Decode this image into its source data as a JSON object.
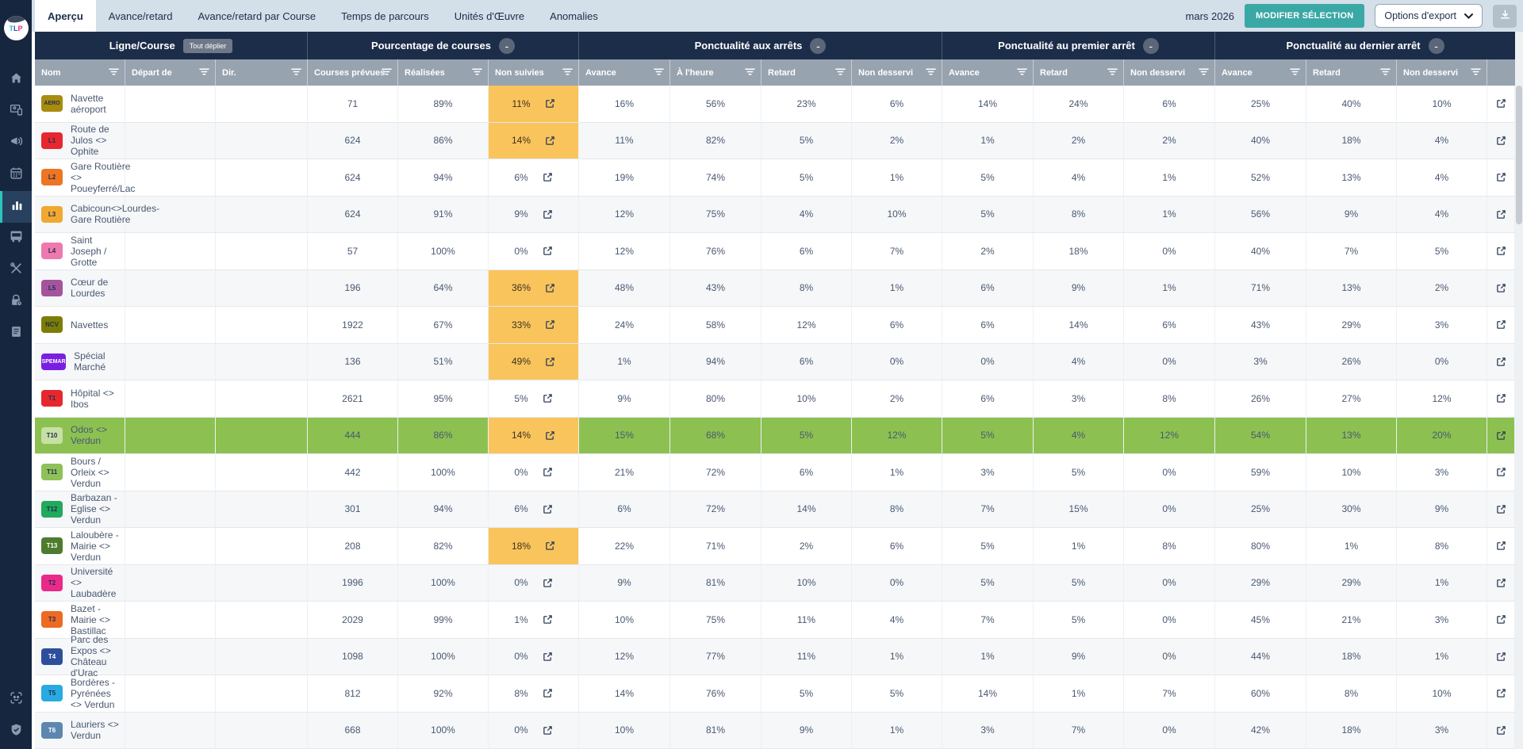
{
  "topbar": {
    "tabs": [
      "Aperçu",
      "Avance/retard",
      "Avance/retard par Course",
      "Temps de parcours",
      "Unités d'Œuvre",
      "Anomalies"
    ],
    "period": "mars 2026",
    "modify_button": "MODIFIER SÉLECTION",
    "export_select": "Options d'export"
  },
  "colors": {
    "accent_teal": "#3aa8a4",
    "header_navy": "#1b2d49",
    "subheader_gray": "#98a3b0",
    "warning_orange": "#f9c45c",
    "highlight_green": "#8cc152"
  },
  "table": {
    "groups": [
      {
        "label": "Ligne/Course",
        "expand_button": "Tout déplier"
      },
      {
        "label": "Pourcentage de courses",
        "collapse_label": "-"
      },
      {
        "label": "Ponctualité aux arrêts",
        "collapse_label": "-"
      },
      {
        "label": "Ponctualité au premier arrêt",
        "collapse_label": "-"
      },
      {
        "label": "Ponctualité au dernier arrêt",
        "collapse_label": "-"
      }
    ],
    "columns": [
      "Nom",
      "Départ de",
      "Dir.",
      "Courses prévues",
      "Réalisées",
      "Non suivies",
      "Avance",
      "À l'heure",
      "Retard",
      "Non desservi",
      "Avance",
      "Retard",
      "Non desservi",
      "Avance",
      "Retard",
      "Non desservi"
    ],
    "rows": [
      {
        "badge": "AERO",
        "badge_bg": "#a98c0f",
        "badge_fg": "#1e2f4d",
        "name": "Navette aéroport",
        "prevues": "71",
        "realisees": "89%",
        "non_suivies": "11%",
        "ns_highlight": true,
        "row_highlight": false,
        "arrets": [
          "16%",
          "56%",
          "23%",
          "6%"
        ],
        "premier": [
          "14%",
          "24%",
          "6%"
        ],
        "dernier": [
          "25%",
          "40%",
          "10%"
        ]
      },
      {
        "badge": "L1",
        "badge_bg": "#e6282e",
        "badge_fg": "#1e2f4d",
        "name": "Route de Julos <> Ophite",
        "prevues": "624",
        "realisees": "86%",
        "non_suivies": "14%",
        "ns_highlight": true,
        "row_highlight": false,
        "arrets": [
          "11%",
          "82%",
          "5%",
          "2%"
        ],
        "premier": [
          "1%",
          "2%",
          "2%"
        ],
        "dernier": [
          "40%",
          "18%",
          "4%"
        ]
      },
      {
        "badge": "L2",
        "badge_bg": "#ee7522",
        "badge_fg": "#1e2f4d",
        "name": "Gare Routière <> Poueyferré/Lac",
        "prevues": "624",
        "realisees": "94%",
        "non_suivies": "6%",
        "ns_highlight": false,
        "row_highlight": false,
        "arrets": [
          "19%",
          "74%",
          "5%",
          "1%"
        ],
        "premier": [
          "5%",
          "4%",
          "1%"
        ],
        "dernier": [
          "52%",
          "13%",
          "4%"
        ]
      },
      {
        "badge": "L3",
        "badge_bg": "#f1a832",
        "badge_fg": "#1e2f4d",
        "name": "Cabicoun<>Lourdes-Gare Routière",
        "prevues": "624",
        "realisees": "91%",
        "non_suivies": "9%",
        "ns_highlight": false,
        "row_highlight": false,
        "arrets": [
          "12%",
          "75%",
          "4%",
          "10%"
        ],
        "premier": [
          "5%",
          "8%",
          "1%"
        ],
        "dernier": [
          "56%",
          "9%",
          "4%"
        ]
      },
      {
        "badge": "L4",
        "badge_bg": "#ee79ae",
        "badge_fg": "#1e2f4d",
        "name": "Saint Joseph / Grotte",
        "prevues": "57",
        "realisees": "100%",
        "non_suivies": "0%",
        "ns_highlight": false,
        "row_highlight": false,
        "arrets": [
          "12%",
          "76%",
          "6%",
          "7%"
        ],
        "premier": [
          "2%",
          "18%",
          "0%"
        ],
        "dernier": [
          "40%",
          "7%",
          "5%"
        ]
      },
      {
        "badge": "L5",
        "badge_bg": "#a4549d",
        "badge_fg": "#1e2f4d",
        "name": "Cœur de Lourdes",
        "prevues": "196",
        "realisees": "64%",
        "non_suivies": "36%",
        "ns_highlight": true,
        "row_highlight": false,
        "arrets": [
          "48%",
          "43%",
          "8%",
          "1%"
        ],
        "premier": [
          "6%",
          "9%",
          "1%"
        ],
        "dernier": [
          "71%",
          "13%",
          "2%"
        ]
      },
      {
        "badge": "NCV",
        "badge_bg": "#7c7d05",
        "badge_fg": "#1e2f4d",
        "name": "Navettes",
        "prevues": "1922",
        "realisees": "67%",
        "non_suivies": "33%",
        "ns_highlight": true,
        "row_highlight": false,
        "arrets": [
          "24%",
          "58%",
          "12%",
          "6%"
        ],
        "premier": [
          "6%",
          "14%",
          "6%"
        ],
        "dernier": [
          "43%",
          "29%",
          "3%"
        ]
      },
      {
        "badge": "SPEMAR",
        "badge_bg": "#7a1fe0",
        "badge_fg": "#ffffff",
        "name": "Spécial Marché",
        "prevues": "136",
        "realisees": "51%",
        "non_suivies": "49%",
        "ns_highlight": true,
        "row_highlight": false,
        "arrets": [
          "1%",
          "94%",
          "6%",
          "0%"
        ],
        "premier": [
          "0%",
          "4%",
          "0%"
        ],
        "dernier": [
          "3%",
          "26%",
          "0%"
        ]
      },
      {
        "badge": "T1",
        "badge_bg": "#e6282e",
        "badge_fg": "#1e2f4d",
        "name": "Hôpital <> Ibos",
        "prevues": "2621",
        "realisees": "95%",
        "non_suivies": "5%",
        "ns_highlight": false,
        "row_highlight": false,
        "arrets": [
          "9%",
          "80%",
          "10%",
          "2%"
        ],
        "premier": [
          "6%",
          "3%",
          "8%"
        ],
        "dernier": [
          "26%",
          "27%",
          "12%"
        ]
      },
      {
        "badge": "T10",
        "badge_bg": "#c6e0a5",
        "badge_fg": "#1e2f4d",
        "name": "Odos <> Verdun",
        "prevues": "444",
        "realisees": "86%",
        "non_suivies": "14%",
        "ns_highlight": true,
        "row_highlight": true,
        "arrets": [
          "15%",
          "68%",
          "5%",
          "12%"
        ],
        "premier": [
          "5%",
          "4%",
          "12%"
        ],
        "dernier": [
          "54%",
          "13%",
          "20%"
        ]
      },
      {
        "badge": "T11",
        "badge_bg": "#8ec158",
        "badge_fg": "#1e2f4d",
        "name": "Bours / Orleix <> Verdun",
        "prevues": "442",
        "realisees": "100%",
        "non_suivies": "0%",
        "ns_highlight": false,
        "row_highlight": false,
        "arrets": [
          "21%",
          "72%",
          "6%",
          "1%"
        ],
        "premier": [
          "3%",
          "5%",
          "0%"
        ],
        "dernier": [
          "59%",
          "10%",
          "3%"
        ]
      },
      {
        "badge": "T12",
        "badge_bg": "#21a95c",
        "badge_fg": "#1e2f4d",
        "name": "Barbazan - Eglise <> Verdun",
        "prevues": "301",
        "realisees": "94%",
        "non_suivies": "6%",
        "ns_highlight": false,
        "row_highlight": false,
        "arrets": [
          "6%",
          "72%",
          "14%",
          "8%"
        ],
        "premier": [
          "7%",
          "15%",
          "0%"
        ],
        "dernier": [
          "25%",
          "30%",
          "9%"
        ]
      },
      {
        "badge": "T13",
        "badge_bg": "#4d7c2d",
        "badge_fg": "#ffffff",
        "name": "Laloubère - Mairie <> Verdun",
        "prevues": "208",
        "realisees": "82%",
        "non_suivies": "18%",
        "ns_highlight": true,
        "row_highlight": false,
        "arrets": [
          "22%",
          "71%",
          "2%",
          "6%"
        ],
        "premier": [
          "5%",
          "1%",
          "8%"
        ],
        "dernier": [
          "80%",
          "1%",
          "8%"
        ]
      },
      {
        "badge": "T2",
        "badge_bg": "#e92a8a",
        "badge_fg": "#1e2f4d",
        "name": "Université <> Laubadère",
        "prevues": "1996",
        "realisees": "100%",
        "non_suivies": "0%",
        "ns_highlight": false,
        "row_highlight": false,
        "arrets": [
          "9%",
          "81%",
          "10%",
          "0%"
        ],
        "premier": [
          "5%",
          "5%",
          "0%"
        ],
        "dernier": [
          "29%",
          "29%",
          "1%"
        ]
      },
      {
        "badge": "T3",
        "badge_bg": "#ed6a23",
        "badge_fg": "#1e2f4d",
        "name": "Bazet - Mairie <> Bastillac",
        "prevues": "2029",
        "realisees": "99%",
        "non_suivies": "1%",
        "ns_highlight": false,
        "row_highlight": false,
        "arrets": [
          "10%",
          "75%",
          "11%",
          "4%"
        ],
        "premier": [
          "7%",
          "5%",
          "0%"
        ],
        "dernier": [
          "45%",
          "21%",
          "3%"
        ]
      },
      {
        "badge": "T4",
        "badge_bg": "#2d4f9b",
        "badge_fg": "#ffffff",
        "name": "Parc des Expos <> Château d'Urac",
        "prevues": "1098",
        "realisees": "100%",
        "non_suivies": "0%",
        "ns_highlight": false,
        "row_highlight": false,
        "arrets": [
          "12%",
          "77%",
          "11%",
          "1%"
        ],
        "premier": [
          "1%",
          "9%",
          "0%"
        ],
        "dernier": [
          "44%",
          "18%",
          "1%"
        ]
      },
      {
        "badge": "T5",
        "badge_bg": "#29abe2",
        "badge_fg": "#1e2f4d",
        "name": "Bordères - Pyrénées <> Verdun",
        "prevues": "812",
        "realisees": "92%",
        "non_suivies": "8%",
        "ns_highlight": false,
        "row_highlight": false,
        "arrets": [
          "14%",
          "76%",
          "5%",
          "5%"
        ],
        "premier": [
          "14%",
          "1%",
          "7%"
        ],
        "dernier": [
          "60%",
          "8%",
          "10%"
        ]
      },
      {
        "badge": "T6",
        "badge_bg": "#5e87b0",
        "badge_fg": "#ffffff",
        "name": "Lauriers <> Verdun",
        "prevues": "668",
        "realisees": "100%",
        "non_suivies": "0%",
        "ns_highlight": false,
        "row_highlight": false,
        "arrets": [
          "10%",
          "81%",
          "9%",
          "1%"
        ],
        "premier": [
          "3%",
          "7%",
          "0%"
        ],
        "dernier": [
          "42%",
          "18%",
          "3%"
        ]
      }
    ]
  }
}
